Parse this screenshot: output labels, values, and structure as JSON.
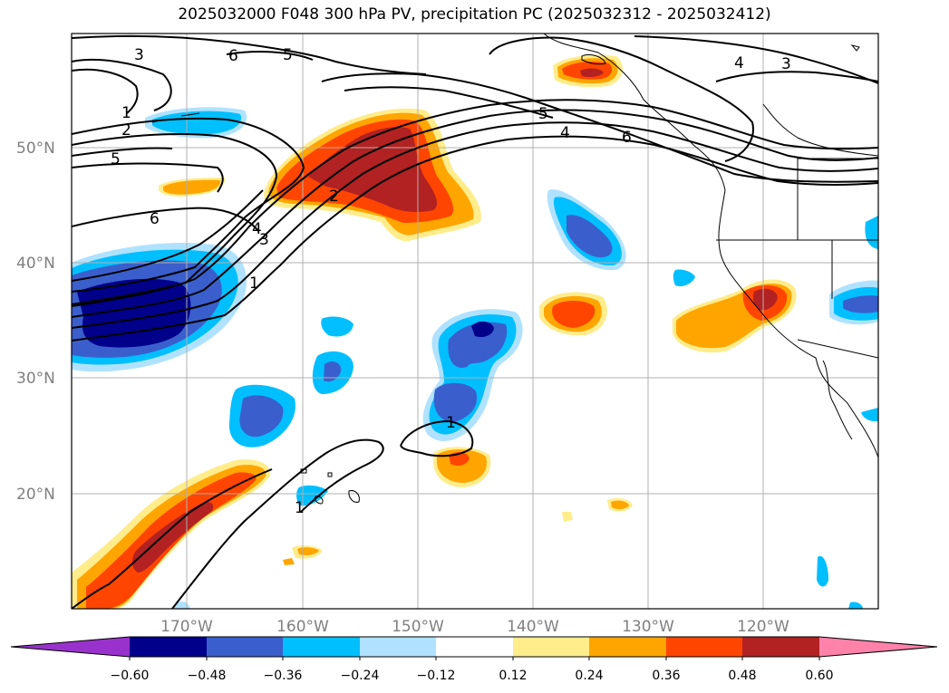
{
  "title": "2025032000 F048 300 hPa PV, precipitation PC (2025032312 - 2025032412)",
  "map": {
    "lon_ticks": [
      "170°W",
      "160°W",
      "150°W",
      "140°W",
      "130°W",
      "120°W"
    ],
    "lat_ticks": [
      "50°N",
      "40°N",
      "30°N",
      "20°N"
    ],
    "contour_labels": [
      "3",
      "6",
      "5",
      "1",
      "2",
      "5",
      "6",
      "4",
      "3",
      "1",
      "2",
      "5",
      "4",
      "6",
      "4",
      "3",
      "1",
      "1"
    ]
  },
  "colorbar": {
    "levels": [
      "−0.60",
      "−0.48",
      "−0.36",
      "−0.24",
      "−0.12",
      "0.12",
      "0.24",
      "0.36",
      "0.48",
      "0.60"
    ],
    "colors": [
      "#9932cc",
      "#00008b",
      "#3a5fcd",
      "#00bfff",
      "#b0e2ff",
      "#ffffff",
      "#ffec8b",
      "#ffa500",
      "#ff4500",
      "#b22222",
      "#ff82ab"
    ]
  },
  "colors": {
    "neg_low": "#b0e2ff",
    "neg_mid": "#00bfff",
    "neg_hi": "#3a5fcd",
    "neg_max": "#00008b",
    "pos_low": "#ffec8b",
    "pos_mid": "#ffa500",
    "pos_hi": "#ff4500",
    "pos_max": "#b22222",
    "grid": "#b0b0b0",
    "contour": "#000000"
  }
}
